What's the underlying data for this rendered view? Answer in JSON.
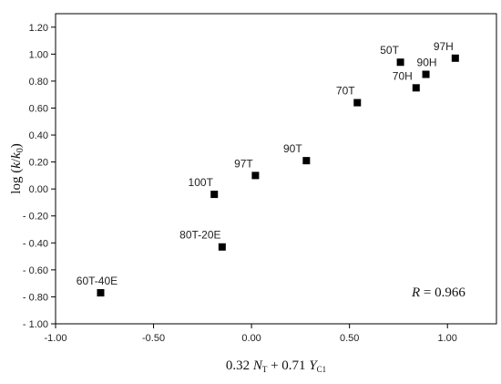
{
  "chart_data": {
    "type": "scatter",
    "xlim": [
      -1.0,
      1.25
    ],
    "ylim": [
      -1.0,
      1.3
    ],
    "x_ticks": [
      -1.0,
      -0.5,
      0.0,
      0.5,
      1.0
    ],
    "x_tick_labels": [
      "-1.00",
      "-0.50",
      "0.00",
      "0.50",
      "1.00"
    ],
    "y_ticks": [
      -1.0,
      -0.8,
      -0.6,
      -0.4,
      -0.2,
      0.0,
      0.2,
      0.4,
      0.6,
      0.8,
      1.0,
      1.2
    ],
    "y_tick_labels": [
      "- 1.00",
      "- 0.80",
      "- 0.60",
      "- 0.40",
      "- 0.20",
      "0.00",
      "0.20",
      "0.40",
      "0.60",
      "0.80",
      "1.00",
      "1.20"
    ],
    "xlabel": {
      "prefix": "0.32 ",
      "v1": "N",
      "s1": "T",
      "mid": " + 0.71 ",
      "v2": "Y",
      "s2": "C1"
    },
    "ylabel": {
      "pre": "log (",
      "k": "k",
      "slash": "/",
      "k0": "k",
      "sub": "0",
      "post": ")"
    },
    "annotation": {
      "var": "R",
      "text": " = 0.966"
    },
    "grid": false,
    "marker": "square",
    "marker_color": "#000000",
    "points": [
      {
        "label": "60T-40E",
        "x": -0.77,
        "y": -0.77
      },
      {
        "label": "80T-20E",
        "x": -0.15,
        "y": -0.43
      },
      {
        "label": "100T",
        "x": -0.19,
        "y": -0.04
      },
      {
        "label": "97T",
        "x": 0.02,
        "y": 0.1
      },
      {
        "label": "90T",
        "x": 0.28,
        "y": 0.21
      },
      {
        "label": "70T",
        "x": 0.54,
        "y": 0.64
      },
      {
        "label": "50T",
        "x": 0.76,
        "y": 0.94
      },
      {
        "label": "70H",
        "x": 0.84,
        "y": 0.75
      },
      {
        "label": "90H",
        "x": 0.89,
        "y": 0.85
      },
      {
        "label": "97H",
        "x": 1.04,
        "y": 0.97
      }
    ]
  }
}
